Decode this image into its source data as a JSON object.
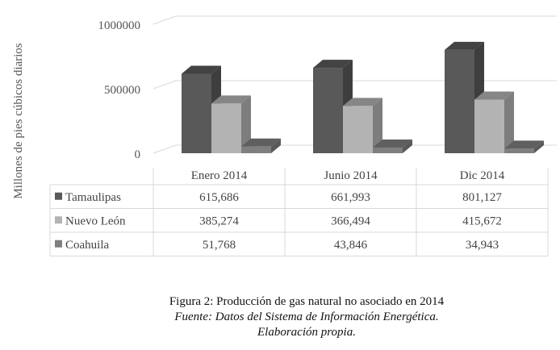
{
  "chart_data": {
    "type": "bar",
    "ylabel": "Millones  de pies cúbicos diarios",
    "ylim": [
      0,
      1000000
    ],
    "yticks": [
      0,
      500000,
      1000000
    ],
    "categories": [
      "Enero 2014",
      "Junio 2014",
      "Dic 2014"
    ],
    "series": [
      {
        "name": "Tamaulipas",
        "values": [
          615686,
          661993,
          801127
        ],
        "labels": [
          "615,686",
          "661,993",
          "801,127"
        ],
        "color": "#595959"
      },
      {
        "name": "Nuevo León",
        "values": [
          385274,
          366494,
          415672
        ],
        "labels": [
          "385,274",
          "366,494",
          "415,672"
        ],
        "color": "#b3b3b3"
      },
      {
        "name": "Coahuila",
        "values": [
          51768,
          43846,
          34943
        ],
        "labels": [
          "51,768",
          "43,846",
          "34,943"
        ],
        "color": "#7f7f7f"
      }
    ],
    "grid": true,
    "legend": "data-table"
  },
  "caption": {
    "title": "Figura 2: Producción de gas natural no asociado en 2014",
    "source": "Fuente: Datos del Sistema de Información Energética.",
    "note": "Elaboración propia."
  }
}
